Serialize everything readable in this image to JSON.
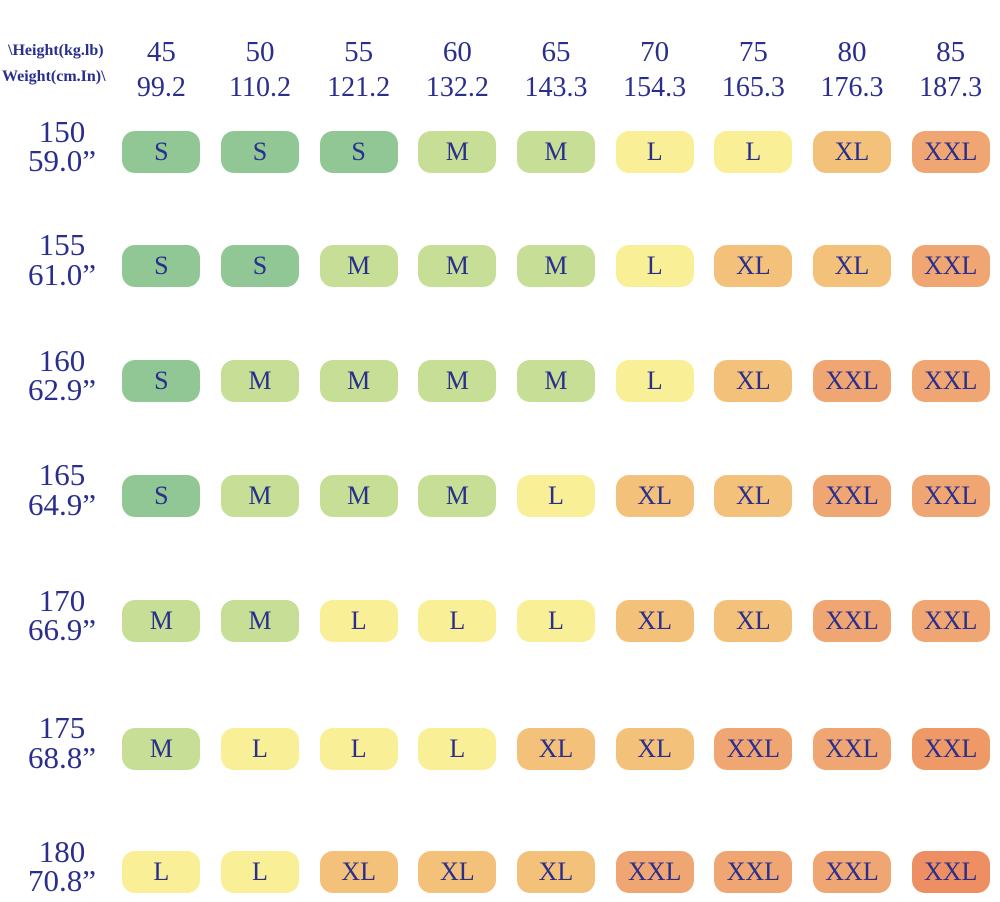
{
  "palette": {
    "text": "#2A2F8D",
    "background": "#FFFFFF",
    "size_S": "#90C794",
    "size_M": "#C6DE95",
    "size_L": "#F9EF96",
    "size_XL": "#F4C17A",
    "size_XXL": "#F0A672",
    "size_XXL_deep": "#EE9966",
    "size_XXL_deepest": "#ED8F63"
  },
  "corner": {
    "line1": "\\Height(kg.lb)",
    "line2": "Weight(cm.In)\\"
  },
  "columns": [
    {
      "kg": "45",
      "lb": "99.2"
    },
    {
      "kg": "50",
      "lb": "110.2"
    },
    {
      "kg": "55",
      "lb": "121.2"
    },
    {
      "kg": "60",
      "lb": "132.2"
    },
    {
      "kg": "65",
      "lb": "143.3"
    },
    {
      "kg": "70",
      "lb": "154.3"
    },
    {
      "kg": "75",
      "lb": "165.3"
    },
    {
      "kg": "80",
      "lb": "176.3"
    },
    {
      "kg": "85",
      "lb": "187.3"
    }
  ],
  "rows": [
    {
      "cm": "150",
      "inch": "59.0”",
      "cells": [
        {
          "label": "S",
          "color": "#90C794"
        },
        {
          "label": "S",
          "color": "#90C794"
        },
        {
          "label": "S",
          "color": "#90C794"
        },
        {
          "label": "M",
          "color": "#C6DE95"
        },
        {
          "label": "M",
          "color": "#C6DE95"
        },
        {
          "label": "L",
          "color": "#F9EF96"
        },
        {
          "label": "L",
          "color": "#F9EF96"
        },
        {
          "label": "XL",
          "color": "#F4C17A"
        },
        {
          "label": "XXL",
          "color": "#F0A672"
        }
      ]
    },
    {
      "cm": "155",
      "inch": "61.0”",
      "cells": [
        {
          "label": "S",
          "color": "#90C794"
        },
        {
          "label": "S",
          "color": "#90C794"
        },
        {
          "label": "M",
          "color": "#C6DE95"
        },
        {
          "label": "M",
          "color": "#C6DE95"
        },
        {
          "label": "M",
          "color": "#C6DE95"
        },
        {
          "label": "L",
          "color": "#F9EF96"
        },
        {
          "label": "XL",
          "color": "#F4C17A"
        },
        {
          "label": "XL",
          "color": "#F4C17A"
        },
        {
          "label": "XXL",
          "color": "#F0A672"
        }
      ]
    },
    {
      "cm": "160",
      "inch": "62.9”",
      "cells": [
        {
          "label": "S",
          "color": "#90C794"
        },
        {
          "label": "M",
          "color": "#C6DE95"
        },
        {
          "label": "M",
          "color": "#C6DE95"
        },
        {
          "label": "M",
          "color": "#C6DE95"
        },
        {
          "label": "M",
          "color": "#C6DE95"
        },
        {
          "label": "L",
          "color": "#F9EF96"
        },
        {
          "label": "XL",
          "color": "#F4C17A"
        },
        {
          "label": "XXL",
          "color": "#F0A672"
        },
        {
          "label": "XXL",
          "color": "#F0A672"
        }
      ]
    },
    {
      "cm": "165",
      "inch": "64.9”",
      "cells": [
        {
          "label": "S",
          "color": "#90C794"
        },
        {
          "label": "M",
          "color": "#C6DE95"
        },
        {
          "label": "M",
          "color": "#C6DE95"
        },
        {
          "label": "M",
          "color": "#C6DE95"
        },
        {
          "label": "L",
          "color": "#F9EF96"
        },
        {
          "label": "XL",
          "color": "#F4C17A"
        },
        {
          "label": "XL",
          "color": "#F4C17A"
        },
        {
          "label": "XXL",
          "color": "#F0A672"
        },
        {
          "label": "XXL",
          "color": "#F0A672"
        }
      ]
    },
    {
      "cm": "170",
      "inch": "66.9”",
      "cells": [
        {
          "label": "M",
          "color": "#C6DE95"
        },
        {
          "label": "M",
          "color": "#C6DE95"
        },
        {
          "label": "L",
          "color": "#F9EF96"
        },
        {
          "label": "L",
          "color": "#F9EF96"
        },
        {
          "label": "L",
          "color": "#F9EF96"
        },
        {
          "label": "XL",
          "color": "#F4C17A"
        },
        {
          "label": "XL",
          "color": "#F4C17A"
        },
        {
          "label": "XXL",
          "color": "#F0A672"
        },
        {
          "label": "XXL",
          "color": "#F0A672"
        }
      ]
    },
    {
      "cm": "175",
      "inch": "68.8”",
      "cells": [
        {
          "label": "M",
          "color": "#C6DE95"
        },
        {
          "label": "L",
          "color": "#F9EF96"
        },
        {
          "label": "L",
          "color": "#F9EF96"
        },
        {
          "label": "L",
          "color": "#F9EF96"
        },
        {
          "label": "XL",
          "color": "#F4C17A"
        },
        {
          "label": "XL",
          "color": "#F4C17A"
        },
        {
          "label": "XXL",
          "color": "#F0A672"
        },
        {
          "label": "XXL",
          "color": "#F0A672"
        },
        {
          "label": "XXL",
          "color": "#EE9966"
        }
      ]
    },
    {
      "cm": "180",
      "inch": "70.8”",
      "cells": [
        {
          "label": "L",
          "color": "#F9EF96"
        },
        {
          "label": "L",
          "color": "#F9EF96"
        },
        {
          "label": "XL",
          "color": "#F4C17A"
        },
        {
          "label": "XL",
          "color": "#F4C17A"
        },
        {
          "label": "XL",
          "color": "#F4C17A"
        },
        {
          "label": "XXL",
          "color": "#F0A672"
        },
        {
          "label": "XXL",
          "color": "#F0A672"
        },
        {
          "label": "XXL",
          "color": "#F0A672"
        },
        {
          "label": "XXL",
          "color": "#ED8F63"
        }
      ]
    }
  ],
  "chart_data": {
    "type": "heatmap",
    "title": "",
    "corner_label_top": "\\Height(kg.lb)",
    "corner_label_bottom": "Weight(cm.In)\\",
    "x_weight_kg": [
      45,
      50,
      55,
      60,
      65,
      70,
      75,
      80,
      85
    ],
    "x_weight_lb": [
      99.2,
      110.2,
      121.2,
      132.2,
      143.3,
      154.3,
      165.3,
      176.3,
      187.3
    ],
    "y_height_cm": [
      150,
      155,
      160,
      165,
      170,
      175,
      180
    ],
    "y_height_in": [
      59.0,
      61.0,
      62.9,
      64.9,
      66.9,
      68.8,
      70.8
    ],
    "cell_sizes": [
      [
        "S",
        "S",
        "S",
        "M",
        "M",
        "L",
        "L",
        "XL",
        "XXL"
      ],
      [
        "S",
        "S",
        "M",
        "M",
        "M",
        "L",
        "XL",
        "XL",
        "XXL"
      ],
      [
        "S",
        "M",
        "M",
        "M",
        "M",
        "L",
        "XL",
        "XXL",
        "XXL"
      ],
      [
        "S",
        "M",
        "M",
        "M",
        "L",
        "XL",
        "XL",
        "XXL",
        "XXL"
      ],
      [
        "M",
        "M",
        "L",
        "L",
        "L",
        "XL",
        "XL",
        "XXL",
        "XXL"
      ],
      [
        "M",
        "L",
        "L",
        "L",
        "XL",
        "XL",
        "XXL",
        "XXL",
        "XXL"
      ],
      [
        "L",
        "L",
        "XL",
        "XL",
        "XL",
        "XXL",
        "XXL",
        "XXL",
        "XXL"
      ]
    ],
    "size_color_scale": {
      "S": "#90C794",
      "M": "#C6DE95",
      "L": "#F9EF96",
      "XL": "#F4C17A",
      "XXL": "#F0A672",
      "XXL_max": "#ED8F63"
    },
    "legend_position": "none",
    "grid": false
  }
}
